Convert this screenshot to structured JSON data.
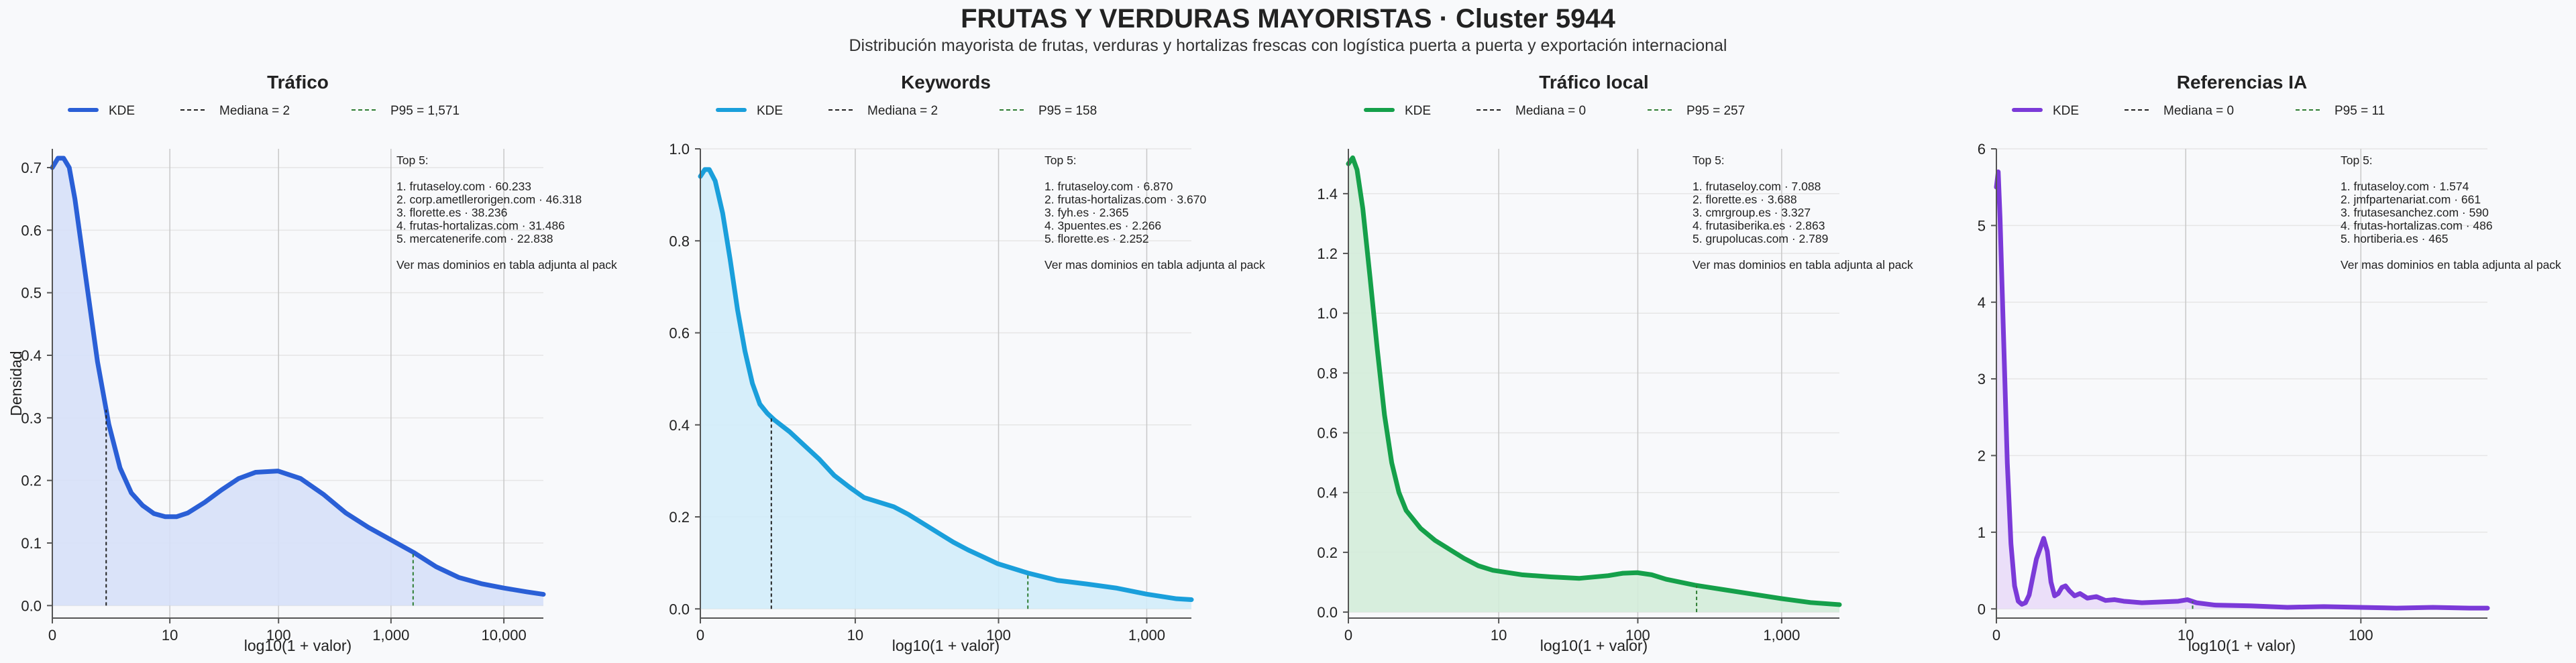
{
  "title": "FRUTAS Y VERDURAS MAYORISTAS · Cluster 5944",
  "subtitle": "Distribución mayorista de frutas, verduras y hortalizas frescas con logística puerta a puerta y exportación internacional",
  "y_axis_label": "Densidad",
  "x_axis_label": "log10(1 + valor)",
  "chart_data": [
    {
      "type": "area",
      "title": "Tráfico",
      "color": "#2a5fd6",
      "fill": "#d6e0f8",
      "legend": [
        {
          "label": "KDE",
          "style": "solid",
          "color": "#2a5fd6"
        },
        {
          "label": "Mediana = 2",
          "style": "dashed",
          "color": "#222222"
        },
        {
          "label": "P95 = 1,571",
          "style": "dashed",
          "color": "#2e7d32"
        }
      ],
      "median_x": 0.477,
      "p95_x": 3.196,
      "xlim": [
        0,
        4.35
      ],
      "ylim": [
        -0.02,
        0.73
      ],
      "xticks": [
        {
          "v": 0,
          "label": "0"
        },
        {
          "v": 1.041,
          "label": "10"
        },
        {
          "v": 2.004,
          "label": "100"
        },
        {
          "v": 3.0,
          "label": "1,000"
        },
        {
          "v": 4.0,
          "label": "10,000"
        }
      ],
      "yticks": [
        {
          "v": 0,
          "label": "0.0"
        },
        {
          "v": 0.1,
          "label": "0.1"
        },
        {
          "v": 0.2,
          "label": "0.2"
        },
        {
          "v": 0.3,
          "label": "0.3"
        },
        {
          "v": 0.4,
          "label": "0.4"
        },
        {
          "v": 0.5,
          "label": "0.5"
        },
        {
          "v": 0.6,
          "label": "0.6"
        },
        {
          "v": 0.7,
          "label": "0.7"
        }
      ],
      "x": [
        0,
        0.05,
        0.1,
        0.15,
        0.2,
        0.3,
        0.4,
        0.5,
        0.6,
        0.7,
        0.8,
        0.9,
        1.0,
        1.1,
        1.2,
        1.35,
        1.5,
        1.65,
        1.8,
        2.0,
        2.2,
        2.4,
        2.6,
        2.8,
        3.0,
        3.2,
        3.4,
        3.6,
        3.8,
        4.0,
        4.2,
        4.35
      ],
      "y": [
        0.7,
        0.715,
        0.715,
        0.7,
        0.65,
        0.52,
        0.39,
        0.29,
        0.22,
        0.18,
        0.16,
        0.147,
        0.142,
        0.142,
        0.148,
        0.165,
        0.185,
        0.203,
        0.213,
        0.215,
        0.203,
        0.178,
        0.148,
        0.125,
        0.105,
        0.085,
        0.062,
        0.045,
        0.035,
        0.028,
        0.022,
        0.018
      ],
      "top5": [
        "Top 5:",
        "",
        "1. frutaseloy.com · 60.233",
        "2. corp.ametllerorigen.com · 46.318",
        "3. florette.es · 38.236",
        "4. frutas-hortalizas.com · 31.486",
        "5. mercatenerife.com · 22.838",
        "",
        "Ver mas dominios en tabla adjunta al pack"
      ]
    },
    {
      "type": "area",
      "title": "Keywords",
      "color": "#1a9fdb",
      "fill": "#d2ecf9",
      "legend": [
        {
          "label": "KDE",
          "style": "solid",
          "color": "#1a9fdb"
        },
        {
          "label": "Mediana = 2",
          "style": "dashed",
          "color": "#222222"
        },
        {
          "label": "P95 = 158",
          "style": "dashed",
          "color": "#2e7d32"
        }
      ],
      "median_x": 0.477,
      "p95_x": 2.201,
      "xlim": [
        0,
        3.3
      ],
      "ylim": [
        -0.02,
        1.0
      ],
      "xticks": [
        {
          "v": 0,
          "label": "0"
        },
        {
          "v": 1.041,
          "label": "10"
        },
        {
          "v": 2.004,
          "label": "100"
        },
        {
          "v": 3.0,
          "label": "1,000"
        }
      ],
      "yticks": [
        {
          "v": 0,
          "label": "0.0"
        },
        {
          "v": 0.2,
          "label": "0.2"
        },
        {
          "v": 0.4,
          "label": "0.4"
        },
        {
          "v": 0.6,
          "label": "0.6"
        },
        {
          "v": 0.8,
          "label": "0.8"
        },
        {
          "v": 1.0,
          "label": "1.0"
        }
      ],
      "x": [
        0,
        0.03,
        0.06,
        0.1,
        0.15,
        0.2,
        0.25,
        0.3,
        0.35,
        0.4,
        0.45,
        0.5,
        0.6,
        0.7,
        0.8,
        0.9,
        1.0,
        1.1,
        1.2,
        1.3,
        1.4,
        1.5,
        1.6,
        1.7,
        1.8,
        1.9,
        2.0,
        2.2,
        2.4,
        2.6,
        2.8,
        3.0,
        3.2,
        3.3
      ],
      "y": [
        0.94,
        0.955,
        0.955,
        0.93,
        0.86,
        0.76,
        0.65,
        0.56,
        0.49,
        0.445,
        0.425,
        0.41,
        0.385,
        0.355,
        0.325,
        0.29,
        0.265,
        0.242,
        0.232,
        0.222,
        0.205,
        0.185,
        0.165,
        0.145,
        0.128,
        0.113,
        0.098,
        0.078,
        0.062,
        0.054,
        0.045,
        0.032,
        0.022,
        0.02
      ],
      "top5": [
        "Top 5:",
        "",
        "1. frutaseloy.com · 6.870",
        "2. frutas-hortalizas.com · 3.670",
        "3. fyh.es · 2.365",
        "4. 3puentes.es · 2.266",
        "5. florette.es · 2.252",
        "",
        "Ver mas dominios en tabla adjunta al pack"
      ]
    },
    {
      "type": "area",
      "title": "Tráfico local",
      "color": "#15a04a",
      "fill": "#d3ecd9",
      "legend": [
        {
          "label": "KDE",
          "style": "solid",
          "color": "#15a04a"
        },
        {
          "label": "Mediana = 0",
          "style": "dashed",
          "color": "#222222"
        },
        {
          "label": "P95 = 257",
          "style": "dashed",
          "color": "#2e7d32"
        }
      ],
      "median_x": 0,
      "p95_x": 2.411,
      "xlim": [
        0,
        3.4
      ],
      "ylim": [
        -0.02,
        1.55
      ],
      "xticks": [
        {
          "v": 0,
          "label": "0"
        },
        {
          "v": 1.041,
          "label": "10"
        },
        {
          "v": 2.004,
          "label": "100"
        },
        {
          "v": 3.0,
          "label": "1,000"
        }
      ],
      "yticks": [
        {
          "v": 0,
          "label": "0.0"
        },
        {
          "v": 0.2,
          "label": "0.2"
        },
        {
          "v": 0.4,
          "label": "0.4"
        },
        {
          "v": 0.6,
          "label": "0.6"
        },
        {
          "v": 0.8,
          "label": "0.8"
        },
        {
          "v": 1.0,
          "label": "1.0"
        },
        {
          "v": 1.2,
          "label": "1.2"
        },
        {
          "v": 1.4,
          "label": "1.4"
        }
      ],
      "x": [
        0,
        0.03,
        0.06,
        0.1,
        0.15,
        0.2,
        0.25,
        0.3,
        0.35,
        0.4,
        0.5,
        0.6,
        0.7,
        0.8,
        0.9,
        1.0,
        1.2,
        1.4,
        1.6,
        1.8,
        1.9,
        2.0,
        2.1,
        2.2,
        2.4,
        2.6,
        2.8,
        3.0,
        3.2,
        3.4
      ],
      "y": [
        1.5,
        1.52,
        1.48,
        1.35,
        1.12,
        0.88,
        0.66,
        0.5,
        0.4,
        0.34,
        0.28,
        0.24,
        0.21,
        0.18,
        0.155,
        0.14,
        0.125,
        0.118,
        0.113,
        0.122,
        0.13,
        0.132,
        0.125,
        0.11,
        0.09,
        0.075,
        0.06,
        0.045,
        0.032,
        0.025
      ],
      "top5": [
        "Top 5:",
        "",
        "1. frutaseloy.com · 7.088",
        "2. florette.es · 3.688",
        "3. cmrgroup.es · 3.327",
        "4. frutasiberika.es · 2.863",
        "5. grupolucas.com · 2.789",
        "",
        "Ver mas dominios en tabla adjunta al pack"
      ]
    },
    {
      "type": "area",
      "title": "Referencias IA",
      "color": "#7b3ad8",
      "fill": "#e9dbf8",
      "legend": [
        {
          "label": "KDE",
          "style": "solid",
          "color": "#7b3ad8"
        },
        {
          "label": "Mediana = 0",
          "style": "dashed",
          "color": "#222222"
        },
        {
          "label": "P95 = 11",
          "style": "dashed",
          "color": "#2e7d32"
        }
      ],
      "median_x": 0,
      "p95_x": 1.079,
      "xlim": [
        0,
        2.7
      ],
      "ylim": [
        -0.12,
        6.0
      ],
      "xticks": [
        {
          "v": 0,
          "label": "0"
        },
        {
          "v": 1.041,
          "label": "10"
        },
        {
          "v": 2.004,
          "label": "100"
        }
      ],
      "yticks": [
        {
          "v": 0,
          "label": "0"
        },
        {
          "v": 1,
          "label": "1"
        },
        {
          "v": 2,
          "label": "2"
        },
        {
          "v": 3,
          "label": "3"
        },
        {
          "v": 4,
          "label": "4"
        },
        {
          "v": 5,
          "label": "5"
        },
        {
          "v": 6,
          "label": "6"
        }
      ],
      "x": [
        0,
        0.01,
        0.02,
        0.04,
        0.06,
        0.08,
        0.1,
        0.12,
        0.14,
        0.16,
        0.18,
        0.22,
        0.26,
        0.28,
        0.3,
        0.32,
        0.34,
        0.36,
        0.38,
        0.4,
        0.43,
        0.46,
        0.5,
        0.55,
        0.6,
        0.65,
        0.7,
        0.8,
        0.9,
        1.0,
        1.05,
        1.1,
        1.2,
        1.4,
        1.6,
        1.8,
        2.0,
        2.2,
        2.4,
        2.6,
        2.7
      ],
      "y": [
        5.5,
        5.7,
        5.1,
        3.5,
        1.9,
        0.85,
        0.3,
        0.1,
        0.06,
        0.08,
        0.18,
        0.65,
        0.92,
        0.75,
        0.35,
        0.17,
        0.2,
        0.28,
        0.3,
        0.24,
        0.17,
        0.2,
        0.14,
        0.16,
        0.11,
        0.12,
        0.1,
        0.08,
        0.09,
        0.1,
        0.12,
        0.08,
        0.05,
        0.04,
        0.02,
        0.03,
        0.02,
        0.01,
        0.02,
        0.01,
        0.01
      ],
      "top5": [
        "Top 5:",
        "",
        "1. frutaseloy.com · 1.574",
        "2. jmfpartenariat.com · 661",
        "3. frutasesanchez.com · 590",
        "4. frutas-hortalizas.com · 486",
        "5. hortiberia.es · 465",
        "",
        "Ver mas dominios en tabla adjunta al pack"
      ]
    }
  ]
}
